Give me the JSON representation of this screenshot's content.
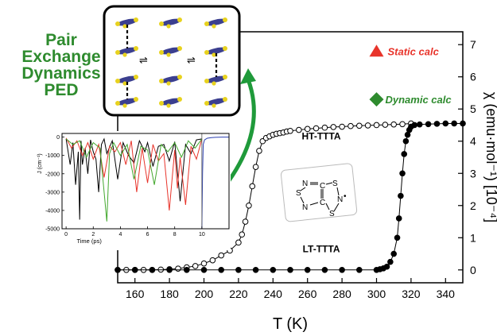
{
  "ped_title": [
    "Pair",
    "Exchange",
    "Dynamics",
    "PED"
  ],
  "chart_data": [
    {
      "type": "scatter",
      "title": "",
      "xlabel": "T (K)",
      "ylabel": "χ (emu·mol⁻¹) [10⁻⁴]",
      "xlim": [
        150,
        350
      ],
      "ylim": [
        -0.4,
        7.4
      ],
      "xticks": [
        160,
        180,
        200,
        220,
        240,
        260,
        280,
        300,
        320,
        340
      ],
      "yticks": [
        0,
        1,
        2,
        3,
        4,
        5,
        6,
        7
      ],
      "series": [
        {
          "name": "HT-TTTA",
          "marker": "open-circle",
          "color": "#000000",
          "x": [
            150,
            155,
            160,
            165,
            170,
            175,
            180,
            185,
            190,
            195,
            200,
            205,
            210,
            215,
            220,
            222,
            224,
            226,
            228,
            230,
            232,
            234,
            236,
            238,
            240,
            242,
            244,
            246,
            248,
            250,
            255,
            260,
            265,
            270,
            275,
            280,
            285,
            290,
            295,
            300,
            305,
            310,
            315,
            320
          ],
          "y": [
            0,
            0,
            0,
            0,
            0,
            0.01,
            0.02,
            0.04,
            0.08,
            0.12,
            0.2,
            0.3,
            0.45,
            0.6,
            0.85,
            1.1,
            1.5,
            2.0,
            2.6,
            3.2,
            3.7,
            4.0,
            4.1,
            4.15,
            4.2,
            4.23,
            4.25,
            4.27,
            4.3,
            4.32,
            4.35,
            4.38,
            4.4,
            4.42,
            4.44,
            4.45,
            4.47,
            4.48,
            4.49,
            4.5,
            4.51,
            4.52,
            4.53,
            4.55
          ]
        },
        {
          "name": "LT-TTTA",
          "marker": "filled-circle",
          "color": "#000000",
          "x": [
            150,
            160,
            170,
            180,
            190,
            200,
            210,
            220,
            230,
            240,
            250,
            260,
            270,
            280,
            290,
            300,
            302,
            304,
            306,
            308,
            310,
            312,
            313,
            314,
            315,
            316,
            317,
            318,
            319,
            320,
            322,
            325,
            330,
            335,
            340,
            345,
            350
          ],
          "y": [
            0,
            0,
            0,
            0,
            0,
            0,
            0,
            0,
            0,
            0,
            0,
            0,
            0,
            0,
            0,
            0,
            0.02,
            0.05,
            0.1,
            0.25,
            0.5,
            1.0,
            1.6,
            2.3,
            3.0,
            3.6,
            4.0,
            4.2,
            4.35,
            4.45,
            4.5,
            4.52,
            4.53,
            4.54,
            4.55,
            4.55,
            4.55
          ]
        }
      ],
      "annotations": [
        {
          "text": "Static calc",
          "marker": "triangle",
          "color": "#e8342b",
          "x": 300,
          "y": 6.8
        },
        {
          "text": "Dynamic calc",
          "marker": "diamond",
          "color": "#2e8b2e",
          "x": 300,
          "y": 5.3
        },
        {
          "text": "HT-TTTA",
          "x": 268,
          "y": 4.05
        },
        {
          "text": "LT-TTTA",
          "x": 268,
          "y": 0.55
        }
      ]
    },
    {
      "type": "line",
      "title": "",
      "xlabel": "Time (ps)",
      "ylabel": "J (cm⁻¹)",
      "xlim": [
        -0.3,
        12
      ],
      "ylim": [
        -5000,
        200
      ],
      "xticks": [
        0,
        2,
        4,
        6,
        8,
        10
      ],
      "yticks": [
        0,
        -1000,
        -2000,
        -3000,
        -4000,
        -5000
      ],
      "series": [
        {
          "color": "#000000",
          "x": [
            0,
            0.3,
            0.5,
            0.7,
            0.9,
            1.0,
            1.1,
            1.2,
            1.4,
            1.6,
            1.8,
            2.0,
            2.2,
            2.4,
            2.6,
            2.8,
            3.0,
            3.4,
            3.8,
            4.2,
            4.6,
            5.0,
            5.4,
            5.8,
            6.0,
            6.4,
            6.8,
            7.2,
            7.6,
            8.0,
            8.4,
            8.8,
            9.2,
            9.6,
            10.0
          ],
          "y": [
            -100,
            -1500,
            -300,
            -2600,
            -800,
            -4500,
            -200,
            -1500,
            -600,
            -2000,
            -150,
            -800,
            -1200,
            -3000,
            -400,
            -100,
            -900,
            -200,
            -2300,
            -300,
            -1000,
            -1400,
            -200,
            -800,
            -300,
            -1600,
            -500,
            -400,
            -1300,
            -250,
            -3500,
            -400,
            -900,
            -150,
            -100
          ]
        },
        {
          "color": "#e8342b",
          "x": [
            0,
            0.4,
            0.8,
            1.2,
            1.6,
            2.0,
            2.4,
            2.8,
            3.2,
            3.6,
            4.0,
            4.4,
            4.8,
            5.2,
            5.6,
            6.0,
            6.4,
            6.8,
            7.2,
            7.6,
            8.0,
            8.2,
            8.4,
            8.8,
            9.2,
            9.6,
            10.0
          ],
          "y": [
            -50,
            -600,
            -200,
            -1000,
            -300,
            -1200,
            -400,
            -2200,
            -500,
            -800,
            -300,
            -1500,
            -200,
            -3000,
            -600,
            -2500,
            -400,
            -1300,
            -900,
            -4000,
            -700,
            -2800,
            -1100,
            -3700,
            -500,
            -1200,
            -100
          ]
        },
        {
          "color": "#43a82e",
          "x": [
            0,
            0.5,
            1.0,
            1.5,
            2.0,
            2.5,
            3.0,
            3.2,
            3.5,
            4.0,
            4.5,
            5.0,
            5.5,
            6.0,
            6.5,
            7.0,
            7.5,
            8.0,
            8.5,
            9.0,
            9.5,
            10.0
          ],
          "y": [
            -100,
            -400,
            -200,
            -1100,
            -300,
            -600,
            -4600,
            -900,
            -300,
            -1000,
            -400,
            -2300,
            -500,
            -700,
            -2600,
            -400,
            -800,
            -300,
            -1100,
            -200,
            -600,
            -100
          ]
        },
        {
          "color": "#2a3eb1",
          "x": [
            10.0,
            10.05,
            10.1,
            10.2,
            10.4,
            10.7,
            11.0,
            11.5,
            12.0
          ],
          "y": [
            -5000,
            -2000,
            -400,
            -150,
            -60,
            -30,
            -10,
            0,
            0
          ]
        }
      ]
    }
  ],
  "molecule_labels": {
    "s_top": "S",
    "n_top": "N",
    "c_top": "C",
    "s_left": "S",
    "n_right": "N",
    "radical": "•",
    "n_left": "N",
    "c_bottom": "C",
    "s_bottom": "S"
  }
}
